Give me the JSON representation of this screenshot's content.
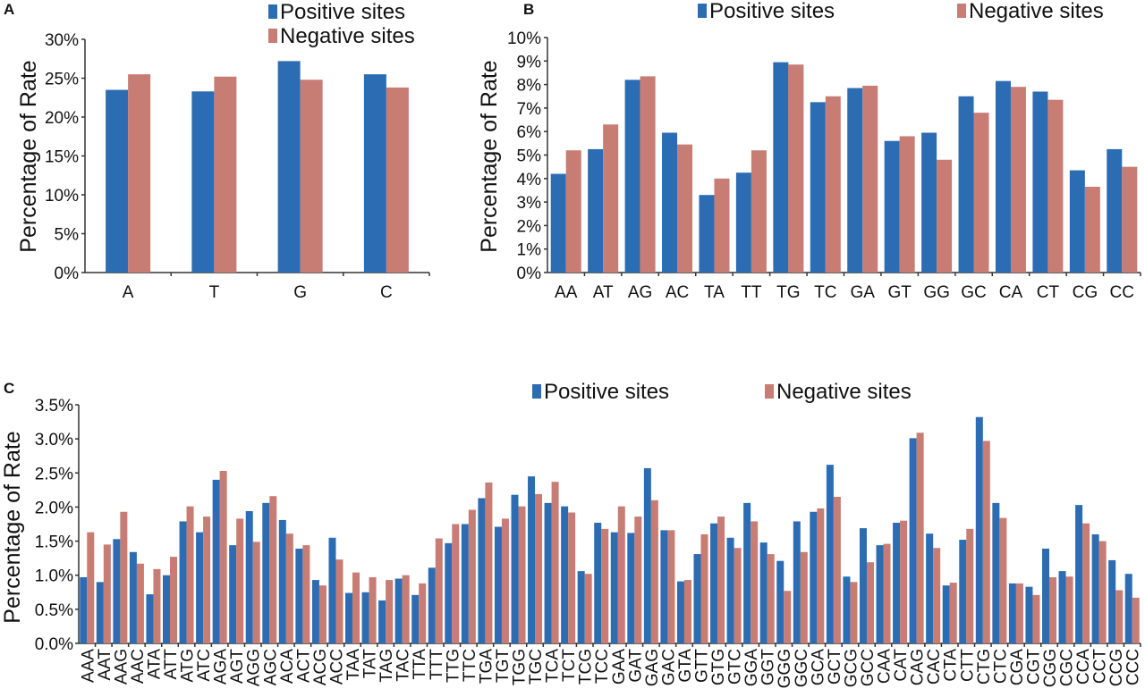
{
  "colors": {
    "positive": "#2b6cb3",
    "negative": "#c77c74"
  },
  "chart_data": [
    {
      "panel": "A",
      "type": "bar",
      "title": "",
      "xlabel": "",
      "ylabel": "Percentage of Rate",
      "ylim": [
        0,
        30
      ],
      "yticks": [
        0,
        5,
        10,
        15,
        20,
        25,
        30
      ],
      "ytick_labels": [
        "0%",
        "5%",
        "10%",
        "15%",
        "20%",
        "25%",
        "30%"
      ],
      "legend": "top-right",
      "categories": [
        "A",
        "T",
        "G",
        "C"
      ],
      "series": [
        {
          "name": "Positive sites",
          "values": [
            23.5,
            23.3,
            27.2,
            25.5
          ]
        },
        {
          "name": "Negative sites",
          "values": [
            25.5,
            25.2,
            24.8,
            23.8
          ]
        }
      ]
    },
    {
      "panel": "B",
      "type": "bar",
      "title": "",
      "xlabel": "",
      "ylabel": "Percentage of Rate",
      "ylim": [
        0,
        10
      ],
      "yticks": [
        0,
        1,
        2,
        3,
        4,
        5,
        6,
        7,
        8,
        9,
        10
      ],
      "ytick_labels": [
        "0%",
        "1%",
        "2%",
        "3%",
        "4%",
        "5%",
        "6%",
        "7%",
        "8%",
        "9%",
        "10%"
      ],
      "legend": "top",
      "categories": [
        "AA",
        "AT",
        "AG",
        "AC",
        "TA",
        "TT",
        "TG",
        "TC",
        "GA",
        "GT",
        "GG",
        "GC",
        "CA",
        "CT",
        "CG",
        "CC"
      ],
      "series": [
        {
          "name": "Positive sites",
          "values": [
            4.2,
            5.25,
            8.2,
            5.95,
            3.3,
            4.25,
            8.95,
            7.25,
            7.85,
            5.6,
            5.95,
            7.5,
            8.15,
            7.7,
            4.35,
            5.25
          ]
        },
        {
          "name": "Negative sites",
          "values": [
            5.2,
            6.3,
            8.35,
            5.45,
            4.0,
            5.2,
            8.85,
            7.5,
            7.95,
            5.8,
            4.8,
            6.8,
            7.9,
            7.35,
            3.65,
            4.5
          ]
        }
      ]
    },
    {
      "panel": "C",
      "type": "bar",
      "title": "",
      "xlabel": "",
      "ylabel": "Percentage of Rate",
      "ylim": [
        0,
        3.5
      ],
      "yticks": [
        0,
        0.5,
        1,
        1.5,
        2,
        2.5,
        3,
        3.5
      ],
      "ytick_labels": [
        "0.0%",
        "0.5%",
        "1.0%",
        "1.5%",
        "2.0%",
        "2.5%",
        "3.0%",
        "3.5%"
      ],
      "legend": "top",
      "categories": [
        "AAA",
        "AAT",
        "AAG",
        "AAC",
        "ATA",
        "ATT",
        "ATG",
        "ATC",
        "AGA",
        "AGT",
        "AGG",
        "AGC",
        "ACA",
        "ACT",
        "ACG",
        "ACC",
        "TAA",
        "TAT",
        "TAG",
        "TAC",
        "TTA",
        "TTT",
        "TTG",
        "TTC",
        "TGA",
        "TGT",
        "TGG",
        "TGC",
        "TCA",
        "TCT",
        "TCG",
        "TCC",
        "GAA",
        "GAT",
        "GAG",
        "GAC",
        "GTA",
        "GTT",
        "GTG",
        "GTC",
        "GGA",
        "GGT",
        "GGG",
        "GGC",
        "GCA",
        "GCT",
        "GCG",
        "GCC",
        "CAA",
        "CAT",
        "CAG",
        "CAC",
        "CTA",
        "CTT",
        "CTG",
        "CTC",
        "CGA",
        "CGT",
        "CGG",
        "CGC",
        "CCA",
        "CCT",
        "CCG",
        "CCC"
      ],
      "series": [
        {
          "name": "Positive sites",
          "values": [
            0.97,
            0.9,
            1.53,
            1.34,
            0.72,
            1.0,
            1.79,
            1.63,
            2.4,
            1.44,
            1.94,
            2.06,
            1.81,
            1.39,
            0.93,
            1.55,
            0.74,
            0.75,
            0.63,
            0.95,
            0.71,
            1.11,
            1.47,
            1.75,
            2.13,
            1.71,
            2.18,
            2.45,
            2.06,
            2.01,
            1.06,
            1.77,
            1.63,
            1.62,
            2.57,
            1.66,
            0.91,
            1.31,
            1.76,
            1.55,
            2.06,
            1.48,
            1.21,
            1.79,
            1.93,
            2.62,
            0.98,
            1.69,
            1.44,
            1.77,
            3.01,
            1.61,
            0.85,
            1.52,
            3.32,
            2.06,
            0.88,
            0.83,
            1.39,
            1.06,
            2.03,
            1.6,
            1.22,
            1.02
          ]
        },
        {
          "name": "Negative sites",
          "values": [
            1.63,
            1.45,
            1.93,
            1.17,
            1.09,
            1.27,
            2.01,
            1.86,
            2.53,
            1.83,
            1.49,
            2.16,
            1.61,
            1.44,
            0.85,
            1.23,
            1.04,
            0.97,
            0.93,
            1.0,
            0.88,
            1.54,
            1.75,
            1.96,
            2.36,
            1.83,
            2.01,
            2.19,
            2.37,
            1.92,
            1.02,
            1.68,
            2.01,
            1.86,
            2.1,
            1.66,
            0.93,
            1.6,
            1.86,
            1.4,
            1.79,
            1.31,
            0.77,
            1.34,
            1.98,
            2.15,
            0.9,
            1.19,
            1.46,
            1.8,
            3.09,
            1.4,
            0.89,
            1.68,
            2.97,
            1.84,
            0.88,
            0.71,
            0.97,
            0.98,
            1.76,
            1.5,
            0.78,
            0.67
          ]
        }
      ]
    }
  ]
}
